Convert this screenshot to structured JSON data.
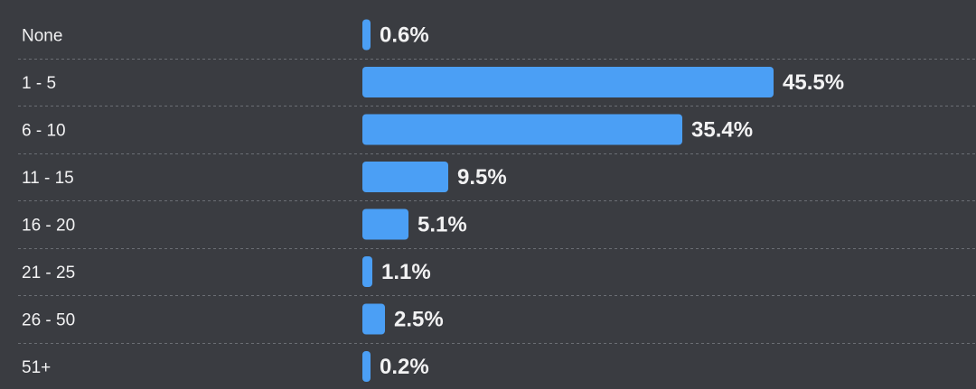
{
  "chart_data": {
    "type": "bar",
    "orientation": "horizontal",
    "categories": [
      "None",
      "1 - 5",
      "6 - 10",
      "11 - 15",
      "16 - 20",
      "21 - 25",
      "26 - 50",
      "51+"
    ],
    "values": [
      0.6,
      45.5,
      35.4,
      9.5,
      5.1,
      1.1,
      2.5,
      0.2
    ],
    "value_labels": [
      "0.6%",
      "45.5%",
      "35.4%",
      "9.5%",
      "5.1%",
      "1.1%",
      "2.5%",
      "0.2%"
    ],
    "unit": "%",
    "title": "",
    "xlabel": "",
    "ylabel": "",
    "xlim": [
      0,
      50
    ],
    "grid": false,
    "row_dividers": true,
    "colors": {
      "background": "#3a3c41",
      "bar": "#4b9ff5",
      "text": "#f2f2f3",
      "divider": "#6b6e74"
    }
  }
}
